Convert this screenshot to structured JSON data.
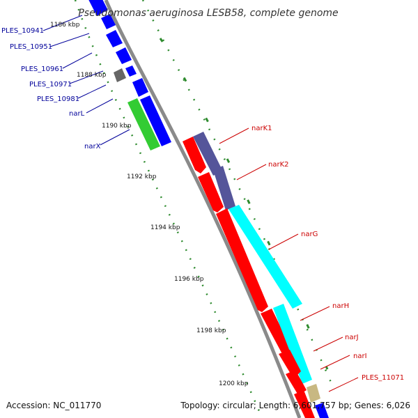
{
  "title": "Pseudomonas aeruginosa LESB58, complete genome",
  "footer": {
    "accession": "Accession: NC_011770",
    "summary": "Topology: circular; Length: 6,601,757 bp; Genes: 6,026"
  },
  "ticks": [
    {
      "label": "1186 kbp"
    },
    {
      "label": "1188 kbp"
    },
    {
      "label": "1190 kbp"
    },
    {
      "label": "1192 kbp"
    },
    {
      "label": "1194 kbp"
    },
    {
      "label": "1196 kbp"
    },
    {
      "label": "1198 kbp"
    },
    {
      "label": "1200 kbp"
    }
  ],
  "outer_genes": [
    {
      "label": "PLES_10941",
      "color": "#0000ff"
    },
    {
      "label": "PLES_10951",
      "color": "#0000ff"
    },
    {
      "label": "PLES_10961",
      "color": "#0000ff"
    },
    {
      "label": "PLES_10971",
      "color": "#666666"
    },
    {
      "label": "PLES_10981",
      "color": "#0000ff"
    },
    {
      "label": "narL",
      "color": "#0000ff"
    },
    {
      "label": "narX",
      "color": "#33cc33"
    }
  ],
  "inner_genes": [
    {
      "label": "narK1",
      "color": "#ff0000"
    },
    {
      "label": "narK2",
      "color": "#55559a"
    },
    {
      "label": "narG",
      "color": "#00ffff"
    },
    {
      "label": "narH",
      "color": "#ff0000"
    },
    {
      "label": "narJ",
      "color": "#ff0000"
    },
    {
      "label": "narI",
      "color": "#ff0000"
    },
    {
      "label": "PLES_11071",
      "color": "#c8b882"
    }
  ],
  "colors": {
    "backbone": "#8a8a8a",
    "gc_dots": "#2e8b2e",
    "blue_gene": "#0000ff",
    "gray_gene": "#666666",
    "green_gene": "#33cc33",
    "red_gene": "#ff0000",
    "purple_gene": "#55559a",
    "cyan_gene": "#00ffff",
    "tan_gene": "#c8b882",
    "blue_label": "#00009a",
    "red_label": "#cc0000"
  }
}
